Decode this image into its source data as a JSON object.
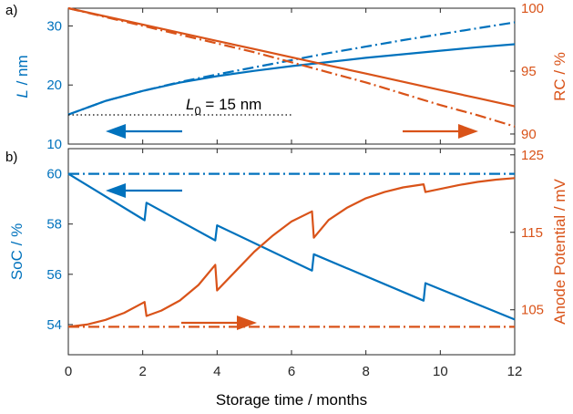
{
  "colors": {
    "blue": "#0072BD",
    "orange": "#D95319",
    "black": "#000000"
  },
  "x_label": "Storage time  /  months",
  "x_ticks": [
    "0",
    "2",
    "4",
    "6",
    "8",
    "10",
    "12"
  ],
  "chart_data": [
    {
      "panel_label": "a)",
      "type": "line",
      "xlim": [
        0,
        12
      ],
      "left_axis": {
        "label_italic": "L",
        "label_rest": " / nm",
        "ylim": [
          10,
          33
        ],
        "ticks": [
          "10",
          "20",
          "30"
        ],
        "tick_values": [
          10,
          20,
          30
        ]
      },
      "right_axis": {
        "label": "RC / %",
        "ylim": [
          89.2,
          100
        ],
        "ticks": [
          "90",
          "95",
          "100"
        ],
        "tick_values": [
          90,
          95,
          100
        ]
      },
      "annotation": {
        "main": "L",
        "sub": "0",
        "rest": " = 15 nm",
        "value": 15
      },
      "series": [
        {
          "axis": "left",
          "color": "blue",
          "style": "solid",
          "x": [
            0,
            1,
            2,
            3,
            4,
            5,
            6,
            7,
            8,
            9,
            10,
            11,
            12
          ],
          "y": [
            15.0,
            17.3,
            19.0,
            20.4,
            21.5,
            22.4,
            23.2,
            23.9,
            24.6,
            25.2,
            25.8,
            26.4,
            26.9
          ]
        },
        {
          "axis": "left",
          "color": "blue",
          "style": "dashdot",
          "x": [
            0,
            1,
            2,
            3,
            4,
            5,
            6,
            7,
            8,
            9,
            10,
            11,
            12
          ],
          "y": [
            15.0,
            17.3,
            19.0,
            20.5,
            21.8,
            23.0,
            24.2,
            25.4,
            26.5,
            27.6,
            28.6,
            29.6,
            30.6
          ]
        },
        {
          "axis": "right",
          "color": "orange",
          "style": "solid",
          "x": [
            0,
            1,
            2,
            3,
            4,
            5,
            6,
            7,
            8,
            9,
            10,
            11,
            12
          ],
          "y": [
            100.0,
            99.35,
            98.7,
            98.05,
            97.4,
            96.75,
            96.1,
            95.45,
            94.8,
            94.15,
            93.5,
            92.85,
            92.2
          ]
        },
        {
          "axis": "right",
          "color": "orange",
          "style": "dashdot",
          "x": [
            0,
            1,
            2,
            3,
            4,
            5,
            6,
            7,
            8,
            9,
            10,
            11,
            12
          ],
          "y": [
            100.0,
            99.3,
            98.6,
            97.9,
            97.2,
            96.5,
            95.7,
            94.9,
            94.1,
            93.2,
            92.3,
            91.5,
            90.6
          ]
        }
      ]
    },
    {
      "panel_label": "b)",
      "type": "line",
      "xlim": [
        0,
        12
      ],
      "left_axis": {
        "label": "SoC / %",
        "ylim": [
          52.8,
          61.0
        ],
        "ticks": [
          "54",
          "56",
          "58",
          "60"
        ],
        "tick_values": [
          54,
          56,
          58,
          60
        ]
      },
      "right_axis": {
        "label": "Anode Potential / mV",
        "ylim": [
          99.2,
          125.8
        ],
        "ticks": [
          "105",
          "115",
          "125"
        ],
        "tick_values": [
          105,
          115,
          125
        ]
      },
      "series": [
        {
          "axis": "left",
          "color": "blue",
          "style": "solid",
          "x": [
            0,
            2.05,
            2.1,
            3.95,
            4.0,
            6.55,
            6.6,
            9.55,
            9.6,
            12
          ],
          "y": [
            60.0,
            58.15,
            58.85,
            57.35,
            57.95,
            56.15,
            56.8,
            54.95,
            55.65,
            54.2
          ]
        },
        {
          "axis": "left",
          "color": "blue",
          "style": "dashdot",
          "x": [
            0,
            12
          ],
          "y": [
            60.0,
            60.0
          ]
        },
        {
          "axis": "right",
          "color": "orange",
          "style": "solid",
          "x": [
            0,
            0.5,
            1,
            1.5,
            2.05,
            2.1,
            2.5,
            3,
            3.5,
            3.95,
            4.0,
            4.5,
            5,
            5.5,
            6,
            6.55,
            6.6,
            7,
            7.5,
            8,
            8.5,
            9,
            9.55,
            9.6,
            10,
            10.5,
            11,
            11.5,
            12
          ],
          "y": [
            102.8,
            103.1,
            103.7,
            104.6,
            106.0,
            104.2,
            104.9,
            106.2,
            108.2,
            110.8,
            107.5,
            110.0,
            112.5,
            114.6,
            116.4,
            117.7,
            114.3,
            116.6,
            118.2,
            119.4,
            120.2,
            120.8,
            121.2,
            120.2,
            120.6,
            121.1,
            121.5,
            121.8,
            122.0
          ]
        },
        {
          "axis": "right",
          "color": "orange",
          "style": "dashdot",
          "x": [
            0,
            12
          ],
          "y": [
            102.8,
            102.8
          ]
        }
      ]
    }
  ]
}
